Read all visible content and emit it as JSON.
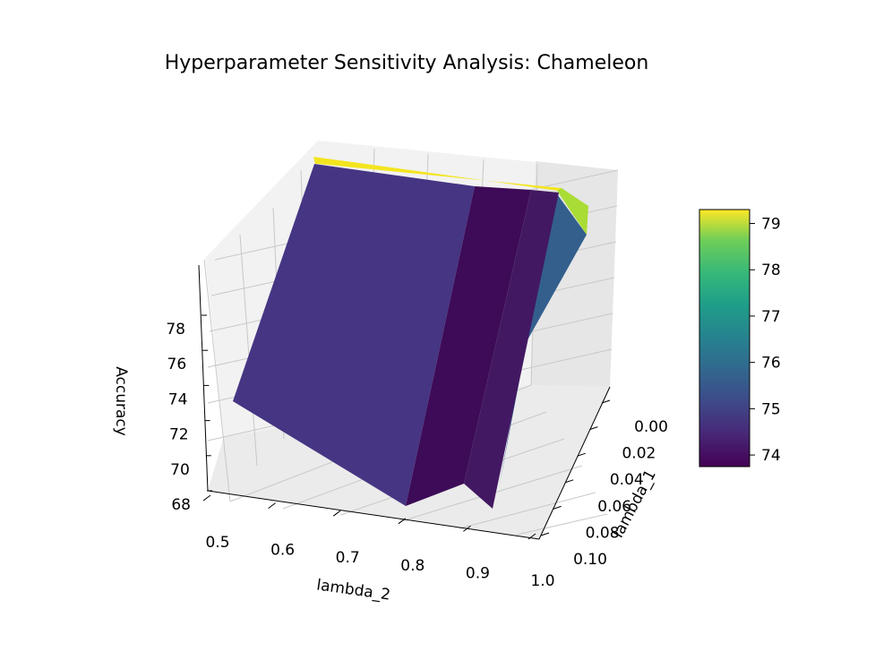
{
  "chart_data": {
    "type": "surface",
    "title": "Hyperparameter Sensitivity Analysis: Chameleon",
    "xlabel": "lambda_2",
    "ylabel": "lambda_1",
    "zlabel": "Accuracy",
    "x_ticks": [
      "0.5",
      "0.6",
      "0.7",
      "0.8",
      "0.9",
      "1.0"
    ],
    "y_ticks": [
      "0.00",
      "0.02",
      "0.04",
      "0.06",
      "0.08",
      "0.10"
    ],
    "z_ticks": [
      "68",
      "70",
      "72",
      "74",
      "76",
      "78"
    ],
    "colorbar_ticks": [
      "74",
      "75",
      "76",
      "77",
      "78",
      "79"
    ],
    "colormap": "viridis",
    "colorbar_range": [
      73.75,
      79.3
    ],
    "grid": true,
    "note_visible_front_edge": {
      "lambda_2": [
        0.5,
        0.8,
        0.9,
        1.0
      ],
      "lambda_1": 0.1,
      "accuracy_approx": [
        72.3,
        69.5,
        70.2,
        69.6
      ]
    },
    "colors": {
      "face_main": "#463583",
      "face_dark": "#3d0b57",
      "face_dark2": "#421863",
      "face_teal": "#345f8d",
      "face_yellow": "#f3e51e",
      "face_green": "#a9dc34"
    }
  }
}
